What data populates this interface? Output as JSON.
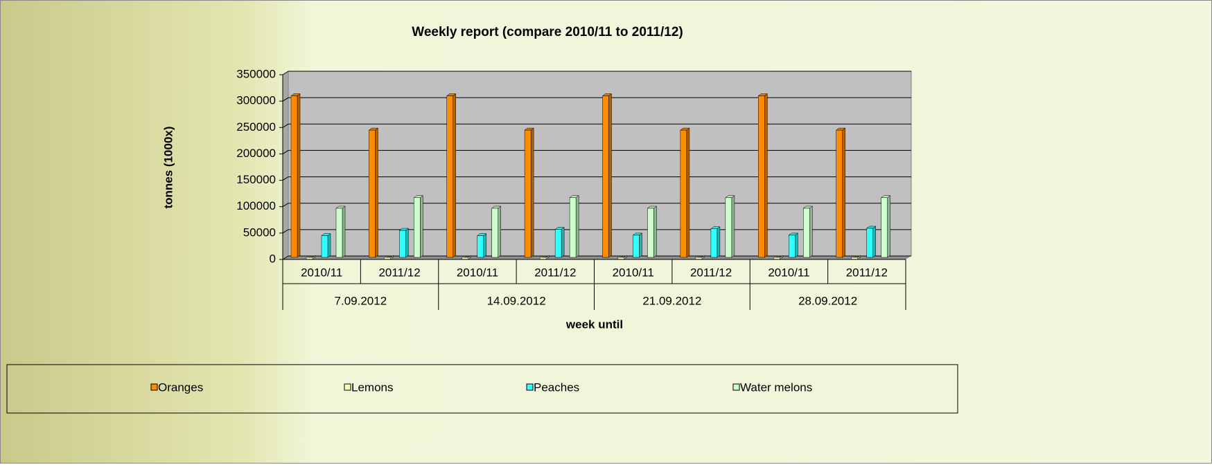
{
  "chart_data": {
    "type": "bar3d",
    "title": "Weekly report (compare 2010/11 to 2011/12)",
    "y_label": "tonnes (1000x)",
    "x_label": "week until",
    "categories": [
      "2010/11",
      "2011/12",
      "2010/11",
      "2011/12",
      "2010/11",
      "2011/12",
      "2010/11",
      "2011/12"
    ],
    "category_groups": [
      "7.09.2012",
      "14.09.2012",
      "21.09.2012",
      "28.09.2012"
    ],
    "series": [
      {
        "name": "Oranges",
        "color": "#ff8c00",
        "values": [
          310000,
          245000,
          310000,
          245000,
          310000,
          245000,
          310000,
          245000
        ]
      },
      {
        "name": "Lemons",
        "color": "#ffffc0",
        "values": [
          500,
          500,
          500,
          500,
          500,
          500,
          500,
          500
        ]
      },
      {
        "name": "Peaches",
        "color": "#33ffff",
        "values": [
          45000,
          55000,
          45000,
          57000,
          46000,
          58000,
          46000,
          59000
        ]
      },
      {
        "name": "Water melons",
        "color": "#ccffcc",
        "values": [
          97000,
          117000,
          97000,
          117000,
          97000,
          117000,
          97000,
          117000
        ]
      }
    ],
    "ylim": [
      0,
      350000
    ],
    "yticks": [
      0,
      50000,
      100000,
      150000,
      200000,
      250000,
      300000,
      350000
    ],
    "grid": true,
    "legend": "bottom"
  }
}
